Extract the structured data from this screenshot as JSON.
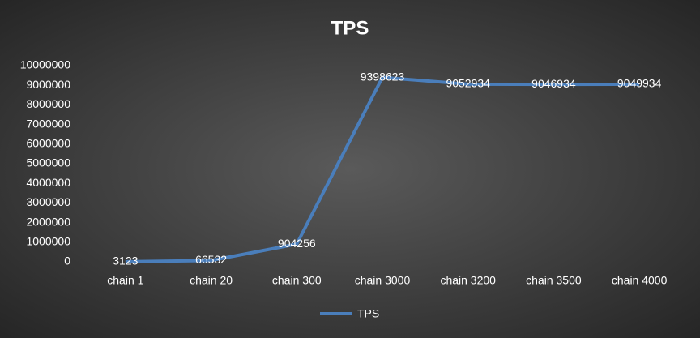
{
  "chart_data": {
    "type": "line",
    "title": "TPS",
    "categories": [
      "chain 1",
      "chain 20",
      "chain 300",
      "chain 3000",
      "chain 3200",
      "chain 3500",
      "chain 4000"
    ],
    "series": [
      {
        "name": "TPS",
        "color": "#4a7ebb",
        "values": [
          3123,
          66532,
          904256,
          9398623,
          9052934,
          9046934,
          9049934
        ]
      }
    ],
    "ylim": [
      0,
      10000000
    ],
    "yticks": [
      0,
      1000000,
      2000000,
      3000000,
      4000000,
      5000000,
      6000000,
      7000000,
      8000000,
      9000000,
      10000000
    ],
    "grid": false,
    "legend": "bottom",
    "data_labels": true
  }
}
